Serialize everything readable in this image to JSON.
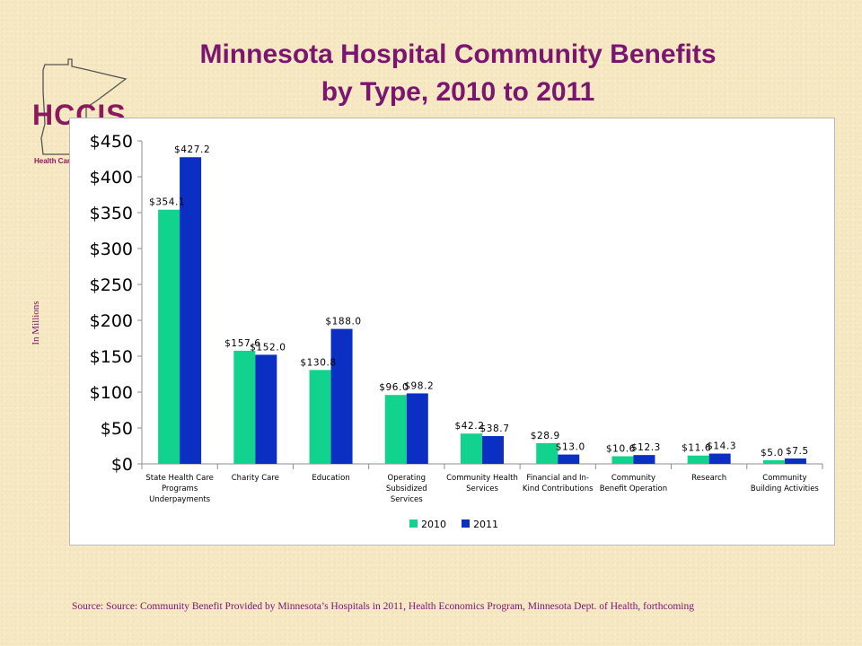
{
  "logo": {
    "text": "HCCIS",
    "subtext": "Health Care"
  },
  "header": {
    "title_line1": "Minnesota Hospital Community Benefits",
    "title_line2": "by Type, 2010 to 2011"
  },
  "side_label": "In Millions",
  "footer": {
    "source": "Source: Source:  Community Benefit Provided by Minnesota’s Hospitals in 2011, Health Economics Program, Minnesota Dept. of Health,  forthcoming"
  },
  "colors": {
    "series_2010": "#11d38e",
    "series_2011": "#0a2fc2",
    "title": "#7a1570"
  },
  "chart_data": {
    "type": "bar",
    "title": "Minnesota Hospital Community Benefits by Type, 2010 to 2011",
    "ylabel": "In Millions",
    "ylim": [
      0,
      450
    ],
    "yticks": [
      0,
      50,
      100,
      150,
      200,
      250,
      300,
      350,
      400,
      450
    ],
    "ytick_labels": [
      "$0",
      "$50",
      "$100",
      "$150",
      "$200",
      "$250",
      "$300",
      "$350",
      "$400",
      "$450"
    ],
    "legend_position": "bottom",
    "grid": false,
    "categories": [
      [
        "State Health Care",
        "Programs",
        "Underpayments"
      ],
      [
        "Charity Care"
      ],
      [
        "Education"
      ],
      [
        "Operating",
        "Subsidized",
        "Services"
      ],
      [
        "Community Health",
        "Services"
      ],
      [
        "Financial and In-",
        "Kind Contributions"
      ],
      [
        "Community",
        "Benefit Operation"
      ],
      [
        "Research"
      ],
      [
        "Community",
        "Building Activities"
      ]
    ],
    "series": [
      {
        "name": "2010",
        "values": [
          354.1,
          157.6,
          130.8,
          96.0,
          42.2,
          28.9,
          10.6,
          11.6,
          5.0
        ],
        "labels": [
          "$354.1",
          "$157.6",
          "$130.8",
          "$96.0",
          "$42.2",
          "$28.9",
          "$10.6",
          "$11.6",
          "$5.0"
        ]
      },
      {
        "name": "2011",
        "values": [
          427.2,
          152.0,
          188.0,
          98.2,
          38.7,
          13.0,
          12.3,
          14.3,
          7.5
        ],
        "labels": [
          "$427.2",
          "$152.0",
          "$188.0",
          "$98.2",
          "$38.7",
          "$13.0",
          "$12.3",
          "$14.3",
          "$7.5"
        ]
      }
    ]
  }
}
